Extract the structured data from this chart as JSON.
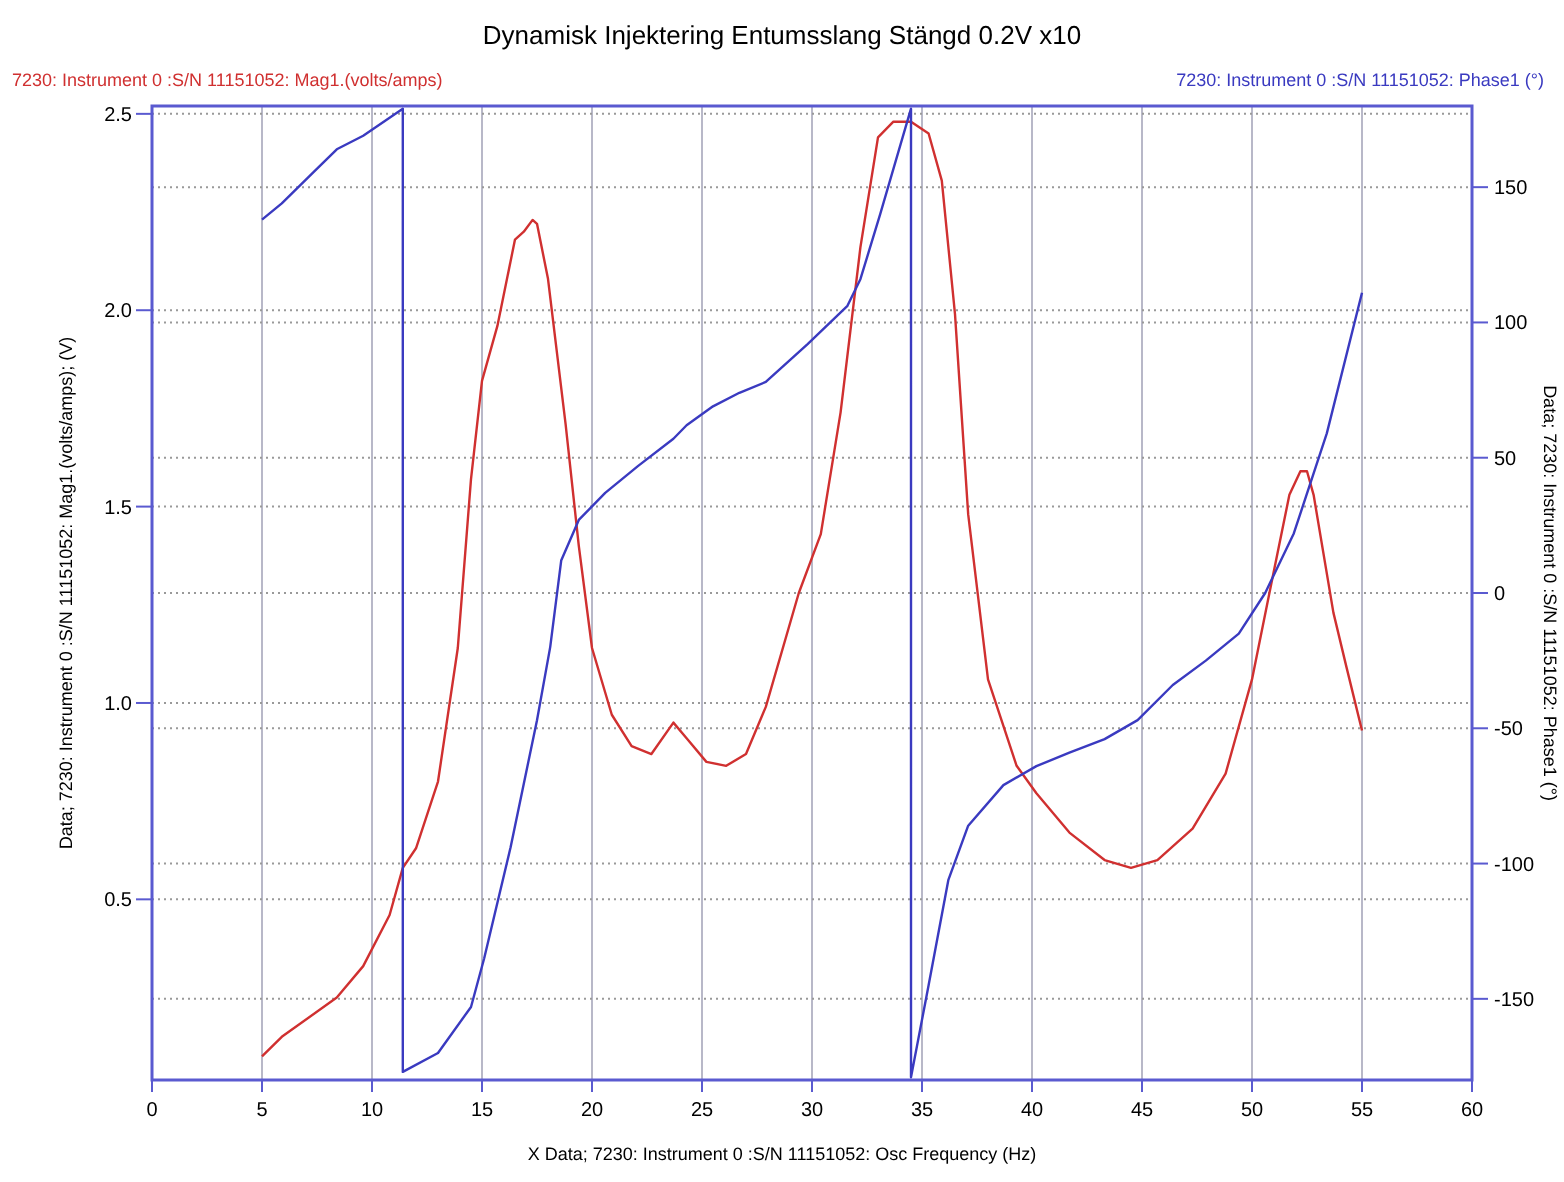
{
  "chart_data": {
    "type": "line",
    "title": "Dynamisk Injektering Entumsslang Stängd 0.2V x10",
    "xlabel": "X Data; 7230: Instrument 0 :S/N 11151052: Osc Frequency (Hz)",
    "ylabel": "Data; 7230: Instrument 0 :S/N 11151052: Mag1.(volts/amps);  (V)",
    "y2label": "Data; 7230: Instrument 0 :S/N 11151052: Phase1  (°)",
    "xlim": [
      0,
      60
    ],
    "xticks": [
      0,
      5,
      10,
      15,
      20,
      25,
      30,
      35,
      40,
      45,
      50,
      55,
      60
    ],
    "ylim": [
      0.04,
      2.52
    ],
    "yticks": [
      0.5,
      {
        "value": 1,
        "label": "1.0"
      },
      1.5,
      {
        "value": 2,
        "label": "2.0"
      },
      2.5
    ],
    "y2lim": [
      -180,
      180
    ],
    "y2ticks": [
      -150,
      -100,
      -50,
      0,
      50,
      100,
      150
    ],
    "grid": true,
    "legend": "top",
    "marker": "none",
    "line_style": "solid",
    "series": [
      {
        "name": "7230: Instrument 0 :S/N 11151052: Mag1.(volts/amps)",
        "color": "#d03030",
        "x": [
          5.0,
          5.9,
          8.4,
          9.6,
          10.8,
          11.4,
          12.0,
          13.0,
          13.9,
          14.5,
          15.0,
          15.7,
          16.5,
          16.9,
          17.3,
          17.5,
          18.0,
          18.8,
          19.4,
          20.0,
          20.9,
          21.8,
          22.7,
          23.7,
          24.3,
          25.2,
          26.1,
          27.0,
          27.9,
          29.4,
          30.4,
          31.3,
          32.2,
          33.0,
          33.7,
          34.5,
          35.3,
          35.9,
          36.5,
          37.1,
          38.0,
          39.3,
          40.2,
          41.7,
          43.3,
          44.5,
          45.7,
          47.3,
          48.8,
          50.0,
          50.9,
          51.7,
          52.2,
          52.5,
          52.8,
          53.7,
          54.3,
          55.0
        ],
        "values": [
          0.1,
          0.15,
          0.25,
          0.33,
          0.46,
          0.58,
          0.63,
          0.8,
          1.14,
          1.57,
          1.82,
          1.96,
          2.18,
          2.2,
          2.23,
          2.22,
          2.08,
          1.71,
          1.4,
          1.14,
          0.97,
          0.89,
          0.87,
          0.95,
          0.91,
          0.85,
          0.84,
          0.87,
          0.99,
          1.28,
          1.43,
          1.74,
          2.16,
          2.44,
          2.48,
          2.48,
          2.45,
          2.33,
          1.99,
          1.48,
          1.06,
          0.84,
          0.77,
          0.67,
          0.6,
          0.58,
          0.6,
          0.68,
          0.82,
          1.06,
          1.31,
          1.53,
          1.59,
          1.59,
          1.53,
          1.23,
          1.09,
          0.93
        ]
      },
      {
        "name": "7230: Instrument 0 :S/N 11151052: Phase1 (°)",
        "color": "#3a3ac0",
        "axis": "y2",
        "x": [
          5.0,
          5.9,
          7.4,
          8.4,
          9.6,
          11.4,
          11.4,
          13.0,
          14.5,
          15.1,
          16.3,
          17.5,
          18.1,
          18.6,
          19.4,
          20.6,
          22.1,
          23.7,
          24.3,
          25.5,
          26.7,
          27.9,
          29.8,
          31.6,
          32.2,
          33.1,
          34.5,
          34.5,
          35.3,
          36.2,
          37.1,
          38.7,
          40.2,
          41.7,
          43.3,
          44.8,
          46.4,
          47.9,
          49.4,
          50.6,
          51.9,
          53.4,
          55.0
        ],
        "values": [
          138,
          144,
          156,
          164,
          169,
          179,
          -177,
          -170,
          -153,
          -135,
          -94,
          -47,
          -20,
          12,
          27,
          37,
          47,
          57,
          62,
          69,
          74,
          78,
          92,
          106,
          116,
          140,
          179,
          -179,
          -145,
          -106,
          -86,
          -71,
          -64,
          -59,
          -54,
          -47,
          -34,
          -25,
          -15,
          0,
          22,
          59,
          111
        ]
      }
    ]
  }
}
